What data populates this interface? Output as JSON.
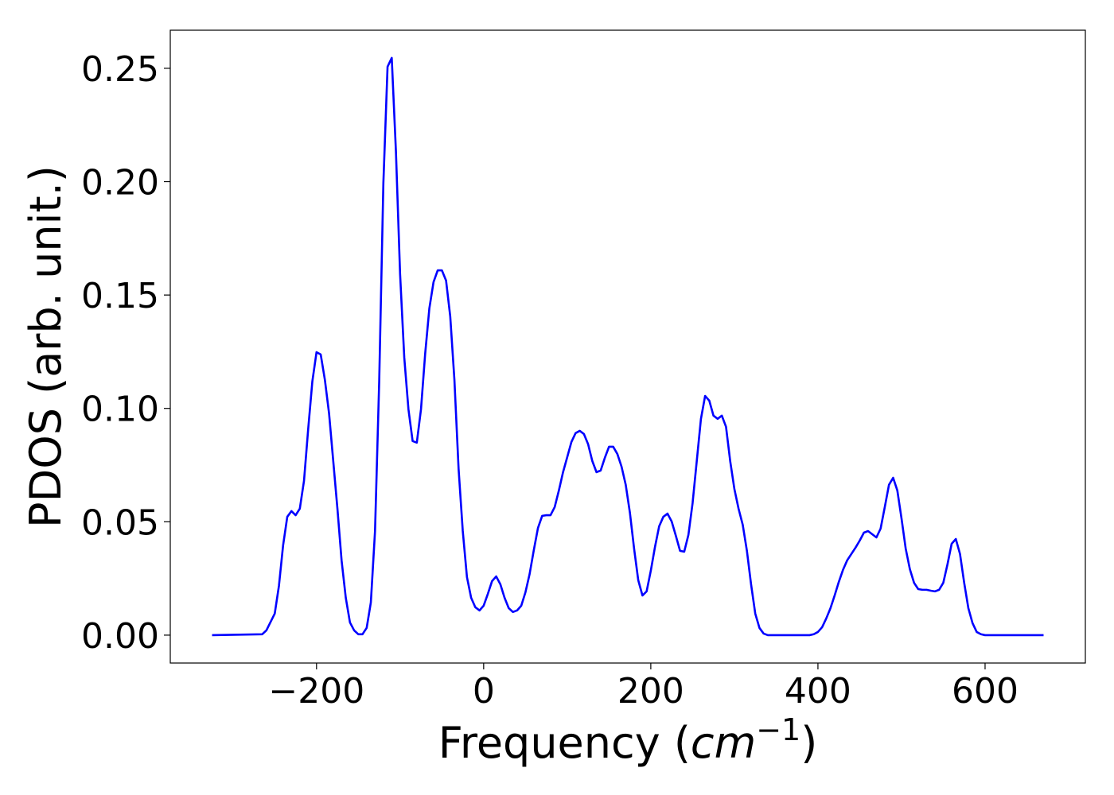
{
  "chart_data": {
    "type": "line",
    "xlabel": [
      "Frequency (",
      "cm",
      "−1",
      ")"
    ],
    "ylabel": "PDOS (arb. unit.)",
    "x": [
      -325,
      -265,
      -260,
      -250,
      -245,
      -240,
      -235,
      -230,
      -225,
      -220,
      -215,
      -210,
      -205,
      -200,
      -195,
      -190,
      -185,
      -180,
      -175,
      -170,
      -165,
      -160,
      -155,
      -150,
      -145,
      -140,
      -135,
      -130,
      -125,
      -120,
      -115,
      -110,
      -105,
      -100,
      -95,
      -90,
      -85,
      -80,
      -75,
      -70,
      -65,
      -60,
      -55,
      -50,
      -45,
      -40,
      -35,
      -30,
      -25,
      -20,
      -15,
      -10,
      -5,
      0,
      5,
      10,
      15,
      20,
      25,
      30,
      35,
      40,
      45,
      50,
      55,
      60,
      65,
      70,
      75,
      80,
      85,
      90,
      95,
      100,
      105,
      110,
      115,
      120,
      125,
      130,
      135,
      140,
      145,
      150,
      155,
      160,
      165,
      170,
      175,
      180,
      185,
      190,
      195,
      200,
      205,
      210,
      215,
      220,
      225,
      230,
      235,
      240,
      245,
      250,
      255,
      260,
      265,
      270,
      275,
      280,
      285,
      290,
      295,
      300,
      305,
      310,
      315,
      320,
      325,
      330,
      335,
      340,
      390,
      395,
      400,
      405,
      410,
      415,
      420,
      425,
      430,
      435,
      440,
      445,
      450,
      455,
      460,
      465,
      470,
      475,
      480,
      485,
      490,
      495,
      500,
      505,
      510,
      515,
      520,
      525,
      530,
      535,
      540,
      545,
      550,
      555,
      560,
      565,
      570,
      575,
      580,
      585,
      590,
      595,
      600,
      670
    ],
    "series": [
      {
        "color": "#0000ff",
        "values": [
          0,
          0.0004,
          0.0021,
          0.0095,
          0.0217,
          0.0396,
          0.0522,
          0.0547,
          0.0529,
          0.0558,
          0.068,
          0.0908,
          0.1119,
          0.1248,
          0.1238,
          0.1126,
          0.0978,
          0.0768,
          0.0558,
          0.0329,
          0.0165,
          0.0056,
          0.0021,
          0.0004,
          0.0004,
          0.0032,
          0.0144,
          0.0459,
          0.1119,
          0.1995,
          0.2507,
          0.2546,
          0.2135,
          0.1592,
          0.1224,
          0.0996,
          0.0856,
          0.0849,
          0.0996,
          0.1241,
          0.1441,
          0.1557,
          0.1609,
          0.1609,
          0.1564,
          0.1406,
          0.1126,
          0.0733,
          0.0459,
          0.0256,
          0.0165,
          0.0123,
          0.0109,
          0.013,
          0.0182,
          0.0238,
          0.0259,
          0.0224,
          0.0165,
          0.0119,
          0.0102,
          0.0109,
          0.013,
          0.0189,
          0.027,
          0.0375,
          0.0473,
          0.0526,
          0.0529,
          0.0529,
          0.0565,
          0.0638,
          0.0719,
          0.0785,
          0.0852,
          0.0891,
          0.0901,
          0.0887,
          0.0842,
          0.0768,
          0.0719,
          0.0726,
          0.0782,
          0.0831,
          0.0831,
          0.0799,
          0.0743,
          0.0663,
          0.054,
          0.0382,
          0.0242,
          0.0175,
          0.0193,
          0.0284,
          0.0389,
          0.048,
          0.0522,
          0.0536,
          0.0501,
          0.0438,
          0.0372,
          0.0368,
          0.0442,
          0.0582,
          0.0768,
          0.0954,
          0.1055,
          0.1034,
          0.0968,
          0.0954,
          0.0968,
          0.0919,
          0.0768,
          0.0645,
          0.0558,
          0.0487,
          0.0372,
          0.0224,
          0.0095,
          0.0032,
          0.0007,
          0,
          0,
          0.0004,
          0.0014,
          0.0035,
          0.0074,
          0.0119,
          0.0175,
          0.0235,
          0.0288,
          0.033,
          0.0358,
          0.0386,
          0.0417,
          0.0452,
          0.0459,
          0.0445,
          0.0431,
          0.047,
          0.0565,
          0.0663,
          0.0694,
          0.0638,
          0.0515,
          0.0382,
          0.0291,
          0.0231,
          0.0203,
          0.02,
          0.02,
          0.0196,
          0.0193,
          0.02,
          0.0231,
          0.0312,
          0.0403,
          0.0424,
          0.0358,
          0.0231,
          0.0119,
          0.0053,
          0.0014,
          0.0004,
          0,
          0
        ]
      }
    ],
    "xlim": [
      -375,
      720
    ],
    "ylim": [
      -0.0123,
      0.2668
    ],
    "xticks": [
      {
        "value": -200,
        "label": "−200"
      },
      0,
      200,
      400,
      600
    ],
    "yticks": [
      {
        "value": 0,
        "label": "0.00"
      },
      {
        "value": 0.05,
        "label": "0.05"
      },
      {
        "value": 0.1,
        "label": "0.10"
      },
      {
        "value": 0.15,
        "label": "0.15"
      },
      {
        "value": 0.2,
        "label": "0.20"
      },
      {
        "value": 0.25,
        "label": "0.25"
      }
    ],
    "grid": false
  }
}
